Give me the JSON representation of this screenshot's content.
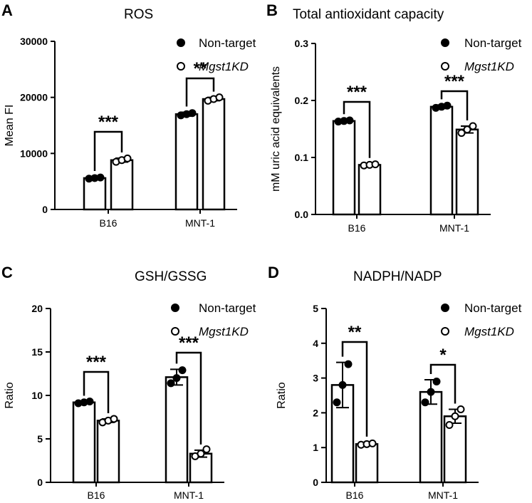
{
  "chart_data": [
    {
      "panel": "A",
      "type": "bar",
      "title": "ROS",
      "ylabel": "Mean FI",
      "xlabel": "",
      "categories": [
        "B16",
        "MNT-1"
      ],
      "ylim": [
        0,
        30000
      ],
      "yticks": [
        "0",
        "10000",
        "20000",
        "30000"
      ],
      "series": [
        {
          "name": "Non-target",
          "values": [
            5600,
            17000
          ],
          "errors": [
            250,
            350
          ],
          "points": [
            [
              5500,
              5600,
              5700
            ],
            [
              16800,
              17000,
              17200
            ]
          ]
        },
        {
          "name": "Mgst1KD",
          "values": [
            8800,
            19700
          ],
          "errors": [
            350,
            300
          ],
          "points": [
            [
              8500,
              8800,
              9100
            ],
            [
              19400,
              19700,
              20000
            ]
          ]
        }
      ],
      "significance": [
        "***",
        "**"
      ]
    },
    {
      "panel": "B",
      "type": "bar",
      "title": "Total antioxidant capacity",
      "ylabel": "mM uric acid equivalents",
      "xlabel": "",
      "categories": [
        "B16",
        "MNT-1"
      ],
      "ylim": [
        0,
        0.3
      ],
      "yticks": [
        "0.0",
        "0.1",
        "0.2",
        "0.3"
      ],
      "series": [
        {
          "name": "Non-target",
          "values": [
            0.164,
            0.189
          ],
          "errors": [
            0.002,
            0.003
          ],
          "points": [
            [
              0.163,
              0.164,
              0.165
            ],
            [
              0.187,
              0.189,
              0.191
            ]
          ]
        },
        {
          "name": "Mgst1KD",
          "values": [
            0.087,
            0.149
          ],
          "errors": [
            0.002,
            0.006
          ],
          "points": [
            [
              0.086,
              0.087,
              0.088
            ],
            [
              0.143,
              0.149,
              0.155
            ]
          ]
        }
      ],
      "significance": [
        "***",
        "***"
      ]
    },
    {
      "panel": "C",
      "type": "bar",
      "title": "GSH/GSSG",
      "ylabel": "Ratio",
      "xlabel": "",
      "categories": [
        "B16",
        "MNT-1"
      ],
      "ylim": [
        0,
        20
      ],
      "yticks": [
        "0",
        "5",
        "10",
        "15",
        "20"
      ],
      "series": [
        {
          "name": "Non-target",
          "values": [
            9.2,
            12.1
          ],
          "errors": [
            0.1,
            0.9
          ],
          "points": [
            [
              9.1,
              9.2,
              9.3
            ],
            [
              11.4,
              12.0,
              12.9
            ]
          ]
        },
        {
          "name": "Mgst1KD",
          "values": [
            7.1,
            3.3
          ],
          "errors": [
            0.2,
            0.4
          ],
          "points": [
            [
              6.9,
              7.1,
              7.3
            ],
            [
              3.0,
              3.3,
              3.8
            ]
          ]
        }
      ],
      "significance": [
        "***",
        "***"
      ]
    },
    {
      "panel": "D",
      "type": "bar",
      "title": "NADPH/NADP",
      "ylabel": "Ratio",
      "xlabel": "",
      "categories": [
        "B16",
        "MNT-1"
      ],
      "ylim": [
        0,
        5
      ],
      "yticks": [
        "0",
        "1",
        "2",
        "3",
        "4",
        "5"
      ],
      "series": [
        {
          "name": "Non-target",
          "values": [
            2.8,
            2.6
          ],
          "errors": [
            0.65,
            0.35
          ],
          "points": [
            [
              2.3,
              2.8,
              3.4
            ],
            [
              2.3,
              2.6,
              2.9
            ]
          ]
        },
        {
          "name": "Mgst1KD",
          "values": [
            1.1,
            1.9
          ],
          "errors": [
            0.05,
            0.2
          ],
          "points": [
            [
              1.08,
              1.1,
              1.12
            ],
            [
              1.65,
              1.9,
              2.1
            ]
          ]
        }
      ],
      "significance": [
        "**",
        "*"
      ]
    }
  ]
}
